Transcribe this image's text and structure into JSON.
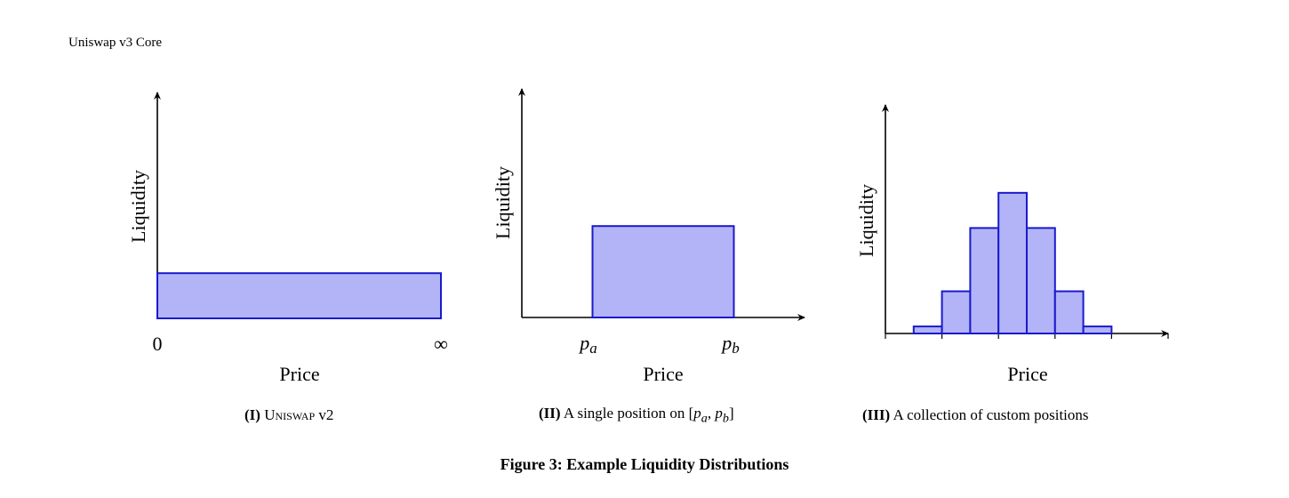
{
  "header": {
    "running_title": "Uniswap v3 Core"
  },
  "figure_caption": "Figure 3: Example Liquidity Distributions",
  "chart_data": [
    {
      "type": "bar",
      "id": "I",
      "xlabel": "Price",
      "ylabel": "Liquidity",
      "x_tick_labels": [
        "0",
        "∞"
      ],
      "caption": {
        "number": "(I)",
        "text_smallcaps": "Uniswap",
        "text_rest": " v2"
      },
      "bars": [
        {
          "x0": 0,
          "x1": 1,
          "value": 1
        }
      ],
      "xlim": [
        0,
        1
      ],
      "ylim": [
        0,
        5
      ]
    },
    {
      "type": "bar",
      "id": "II",
      "xlabel": "Price",
      "ylabel": "Liquidity",
      "x_tick_labels": [
        "p",
        "p"
      ],
      "x_tick_subscripts": [
        "a",
        "b"
      ],
      "caption": {
        "number": "(II)",
        "text": "A single position on [",
        "sub_a": "a",
        "sub_b": "b",
        "text_end": "]"
      },
      "bars": [
        {
          "x0": 0.25,
          "x1": 0.75,
          "value": 2
        }
      ],
      "xlim": [
        0,
        1
      ],
      "ylim": [
        0,
        5
      ]
    },
    {
      "type": "bar",
      "id": "III",
      "xlabel": "Price",
      "ylabel": "Liquidity",
      "x_tick_labels": [],
      "caption": {
        "number": "(III)",
        "text": "A collection of custom positions"
      },
      "bars": [
        {
          "x0": 1,
          "x1": 2,
          "value": 0.2
        },
        {
          "x0": 2,
          "x1": 3,
          "value": 1.2
        },
        {
          "x0": 3,
          "x1": 4,
          "value": 3
        },
        {
          "x0": 4,
          "x1": 5,
          "value": 4
        },
        {
          "x0": 5,
          "x1": 6,
          "value": 3
        },
        {
          "x0": 6,
          "x1": 7,
          "value": 1.2
        },
        {
          "x0": 7,
          "x1": 8,
          "value": 0.2
        }
      ],
      "xlim": [
        0,
        10
      ],
      "ylim": [
        0,
        6.5
      ],
      "x_ticks": [
        2,
        4,
        6,
        8
      ]
    }
  ],
  "colors": {
    "bar_fill": "#b3b3f7",
    "bar_stroke": "#1a1acc",
    "axis": "#000000"
  }
}
